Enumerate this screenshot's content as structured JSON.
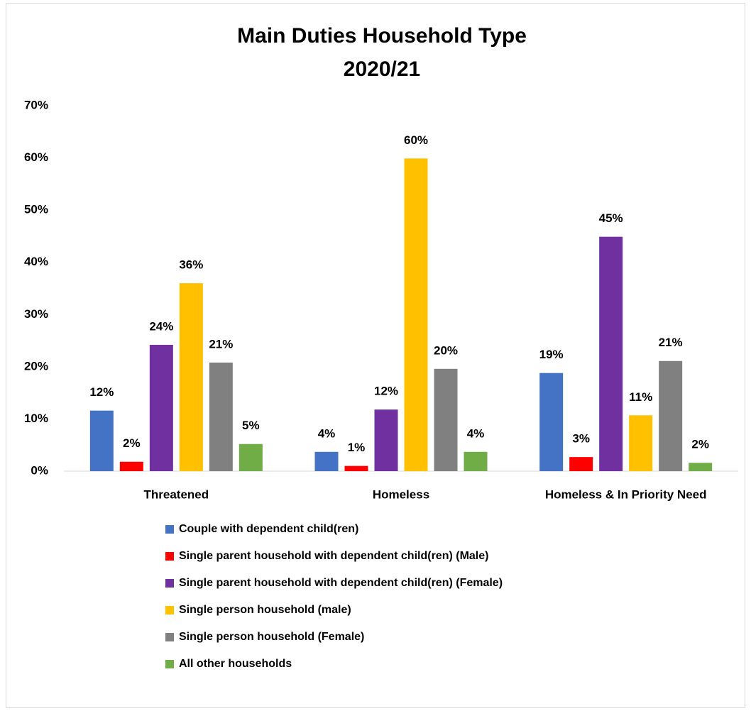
{
  "chart_data": {
    "type": "bar",
    "title": [
      "Main Duties Household Type",
      "2020/21"
    ],
    "categories": [
      "Threatened",
      "Homeless",
      "Homeless & In Priority Need"
    ],
    "series": [
      {
        "name": "Couple with dependent child(ren)",
        "color": "#4472c4",
        "values": [
          11.6,
          3.7,
          18.8
        ],
        "value_labels": [
          "12%",
          "4%",
          "19%"
        ]
      },
      {
        "name": "Single parent household with dependent child(ren) (Male)",
        "color": "#ff0000",
        "values": [
          1.8,
          1.0,
          2.7
        ],
        "value_labels": [
          "2%",
          "1%",
          "3%"
        ]
      },
      {
        "name": "Single parent household with dependent child(ren) (Female)",
        "color": "#7030a0",
        "values": [
          24.2,
          11.8,
          44.9
        ],
        "value_labels": [
          "24%",
          "12%",
          "45%"
        ]
      },
      {
        "name": "Single person household (male)",
        "color": "#ffc000",
        "values": [
          36.0,
          59.9,
          10.7
        ],
        "value_labels": [
          "36%",
          "60%",
          "11%"
        ]
      },
      {
        "name": "Single person household (Female)",
        "color": "#808080",
        "values": [
          20.8,
          19.6,
          21.1
        ],
        "value_labels": [
          "21%",
          "20%",
          "21%"
        ]
      },
      {
        "name": "All other households",
        "color": "#70ad47",
        "values": [
          5.2,
          3.7,
          1.6
        ],
        "value_labels": [
          "5%",
          "4%",
          "2%"
        ]
      }
    ],
    "ylim": [
      0,
      70
    ],
    "yticks": [
      {
        "value": 0,
        "label": "0%"
      },
      {
        "value": 10,
        "label": "10%"
      },
      {
        "value": 20,
        "label": "20%"
      },
      {
        "value": 30,
        "label": "30%"
      },
      {
        "value": 40,
        "label": "40%"
      },
      {
        "value": 50,
        "label": "50%"
      },
      {
        "value": 60,
        "label": "60%"
      },
      {
        "value": 70,
        "label": "70%"
      }
    ],
    "grid": false,
    "legend": "bottom"
  }
}
